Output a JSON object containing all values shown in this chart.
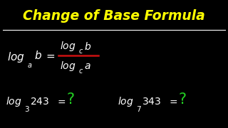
{
  "background_color": "#000000",
  "title": "Change of Base Formula",
  "title_color": "#FFFF00",
  "title_fontsize": 13.5,
  "separator_color": "#FFFFFF",
  "formula_color": "#FFFFFF",
  "green_color": "#22CC22",
  "red_color": "#CC1111",
  "fig_width": 3.2,
  "fig_height": 1.8,
  "dpi": 100
}
